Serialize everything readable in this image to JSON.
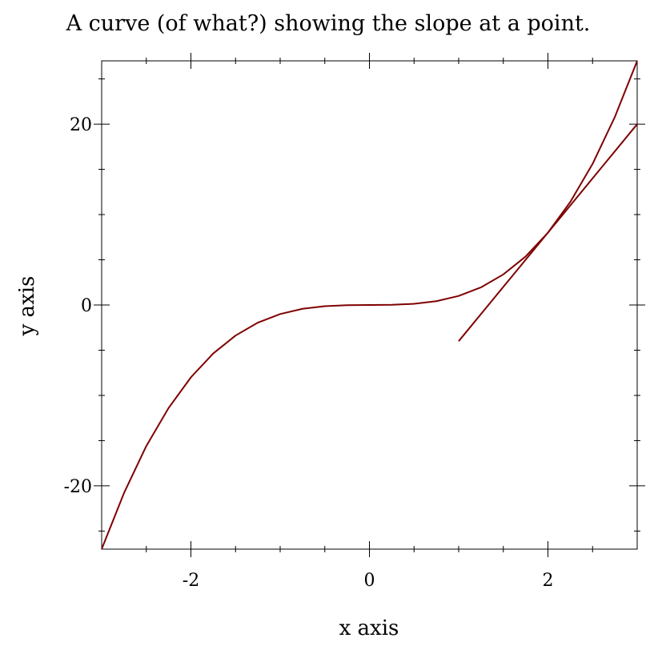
{
  "chart_data": {
    "type": "line",
    "title": "A curve (of what?) showing the slope at a point.",
    "xlabel": "x axis",
    "ylabel": "y axis",
    "xlim": [
      -3,
      3
    ],
    "ylim": [
      -27,
      27
    ],
    "x_ticks": [
      {
        "value": -2,
        "label": "-2"
      },
      {
        "value": 0,
        "label": "0"
      },
      {
        "value": 2,
        "label": "2"
      }
    ],
    "y_ticks": [
      {
        "value": 20,
        "label": "20"
      },
      {
        "value": 0,
        "label": "0"
      },
      {
        "value": -20,
        "label": "-20"
      }
    ],
    "x_minor_ticks": [
      -2.5,
      -1.5,
      -1,
      -0.5,
      0.5,
      1,
      1.5,
      2.5
    ],
    "y_minor_ticks": [
      -25,
      -15,
      -10,
      -5,
      5,
      10,
      15,
      25
    ],
    "grid": false,
    "colors": {
      "curve": "#7f0000",
      "tangent": "#7f0000",
      "axis": "#000000"
    },
    "series": [
      {
        "role": "curve",
        "x": [
          -3,
          -2.75,
          -2.5,
          -2.25,
          -2,
          -1.75,
          -1.5,
          -1.25,
          -1,
          -0.75,
          -0.5,
          -0.25,
          0,
          0.25,
          0.5,
          0.75,
          1,
          1.25,
          1.5,
          1.75,
          2,
          2.25,
          2.5,
          2.75,
          3
        ],
        "y": [
          -27,
          -20.8,
          -15.6,
          -11.39,
          -8,
          -5.36,
          -3.38,
          -1.95,
          -1,
          -0.42,
          -0.13,
          -0.02,
          0,
          0.02,
          0.13,
          0.42,
          1,
          1.95,
          3.38,
          5.36,
          8,
          11.39,
          15.6,
          20.8,
          27
        ]
      },
      {
        "role": "tangent",
        "x": [
          1,
          3
        ],
        "y": [
          -4,
          20
        ]
      }
    ]
  }
}
